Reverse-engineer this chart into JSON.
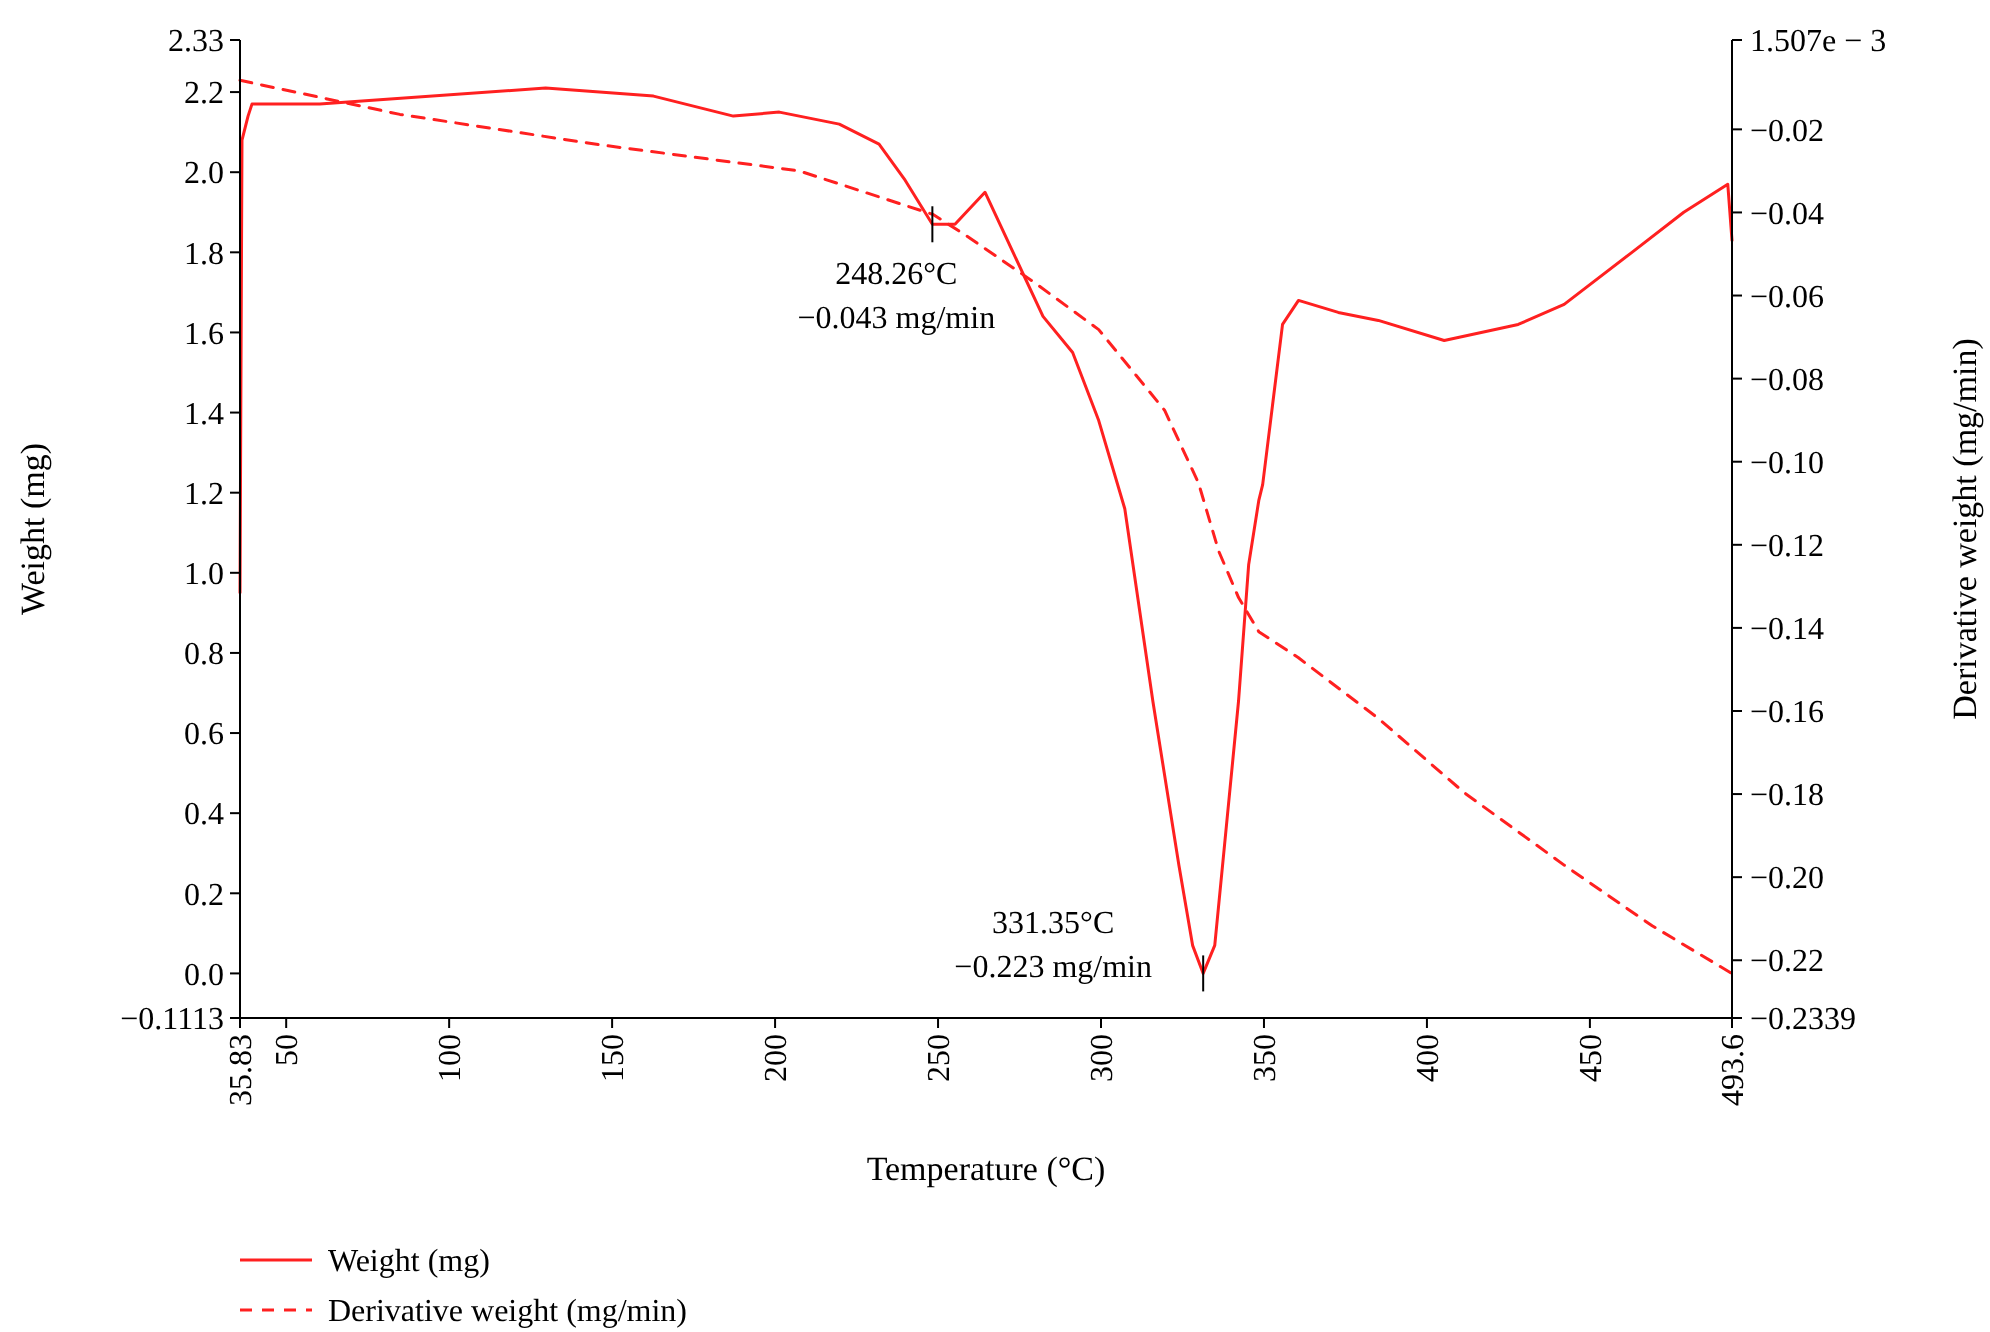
{
  "chart_data": {
    "type": "line",
    "xlabel": "Temperature (°C)",
    "ylabel": "Weight (mg)",
    "y2label": "Derivative weight (mg/min)",
    "xlim": [
      35.83,
      493.6
    ],
    "xticks": [
      35.83,
      50,
      100,
      150,
      200,
      250,
      300,
      350,
      400,
      450,
      493.6
    ],
    "ylim": [
      -0.1113,
      2.33
    ],
    "yticks": [
      {
        "value": -0.1113,
        "label": "−0.1113"
      },
      {
        "value": 0,
        "label": "0.0"
      },
      0.2,
      0.4,
      0.6,
      0.8,
      {
        "value": 1,
        "label": "1.0"
      },
      1.2,
      1.4,
      1.6,
      1.8,
      {
        "value": 2,
        "label": "2.0"
      },
      2.2,
      2.33
    ],
    "y2lim": [
      -0.2339,
      0.001507
    ],
    "y2ticks": [
      {
        "value": -0.2339,
        "label": "−0.2339"
      },
      {
        "value": -0.22,
        "label": "−0.22"
      },
      {
        "value": -0.2,
        "label": "−0.20"
      },
      {
        "value": -0.18,
        "label": "−0.18"
      },
      {
        "value": -0.16,
        "label": "−0.16"
      },
      {
        "value": -0.14,
        "label": "−0.14"
      },
      {
        "value": -0.12,
        "label": "−0.12"
      },
      {
        "value": -0.1,
        "label": "−0.10"
      },
      {
        "value": -0.08,
        "label": "−0.08"
      },
      {
        "value": -0.06,
        "label": "−0.06"
      },
      {
        "value": -0.04,
        "label": "−0.04"
      },
      {
        "value": -0.02,
        "label": "−0.02"
      },
      {
        "value": 0.001507,
        "label": "1.507e − 3"
      }
    ],
    "grid": false,
    "legend": "bottom",
    "marker": "none",
    "series": [
      {
        "name": "Weight (mg)",
        "color": "#ff2020",
        "line_style": "solid",
        "x": [
          35.83,
          36.44,
          38.3,
          39.5,
          60.3,
          129.6,
          162.7,
          187.2,
          201.3,
          219.7,
          231.9,
          239.9,
          248.26,
          255.2,
          264.4,
          282.2,
          291.3,
          299.3,
          307.3,
          315.9,
          323.9,
          328.1,
          331.35,
          334.9,
          337.9,
          342.2,
          345.3,
          348.4,
          349.6,
          355.7,
          360.6,
          372.8,
          385.1,
          405.3,
          428.0,
          442.1,
          462.9,
          478.8,
          492.3,
          493.6
        ],
        "values": [
          0.95,
          2.08,
          2.14,
          2.17,
          2.17,
          2.21,
          2.19,
          2.14,
          2.15,
          2.12,
          2.07,
          1.98,
          1.87,
          1.87,
          1.95,
          1.64,
          1.55,
          1.38,
          1.16,
          0.68,
          0.27,
          0.07,
          0.0,
          0.07,
          0.32,
          0.68,
          1.02,
          1.18,
          1.22,
          1.62,
          1.68,
          1.65,
          1.63,
          1.58,
          1.62,
          1.67,
          1.8,
          1.9,
          1.97,
          1.83
        ]
      },
      {
        "name": "Derivative weight (mg/min)",
        "color": "#ff2020",
        "line_style": "dashed",
        "axis": "y2",
        "x": [
          35.83,
          84.9,
          146.1,
          207.4,
          248.5,
          258.3,
          279.1,
          299.3,
          319.5,
          329.9,
          336.1,
          342.2,
          348.4,
          360.6,
          385.1,
          411.5,
          442.1,
          469.1,
          493.6
        ],
        "values": [
          -0.0082,
          -0.0164,
          -0.0237,
          -0.03,
          -0.0405,
          -0.0454,
          -0.0566,
          -0.0682,
          -0.0876,
          -0.1051,
          -0.1215,
          -0.1327,
          -0.1409,
          -0.1472,
          -0.1618,
          -0.1797,
          -0.1971,
          -0.2117,
          -0.2232
        ]
      }
    ],
    "annotations": [
      {
        "text": "248.26°C\n−0.043 mg/min",
        "x": 248.26,
        "y": 1.87
      },
      {
        "text": "331.35°C\n−0.223 mg/min",
        "x": 331.35,
        "y": 0.0
      }
    ]
  }
}
